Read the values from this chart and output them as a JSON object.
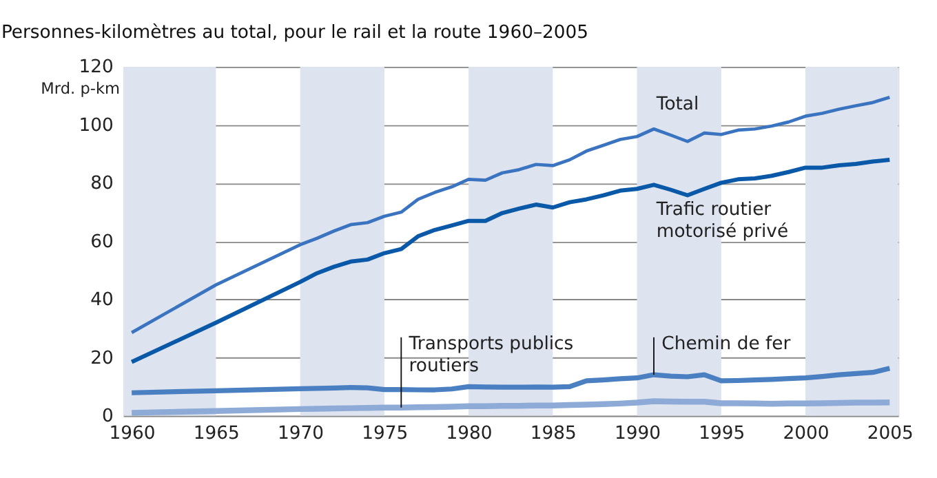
{
  "chart_data": {
    "type": "line",
    "title": "Personnes-kilomètres au total, pour le rail et la route 1960–2005",
    "ylabel": "Mrd. p-km",
    "x": [
      1960,
      1965,
      1970,
      1971,
      1972,
      1973,
      1974,
      1975,
      1976,
      1977,
      1978,
      1979,
      1980,
      1981,
      1982,
      1983,
      1984,
      1985,
      1986,
      1987,
      1988,
      1989,
      1990,
      1991,
      1992,
      1993,
      1994,
      1995,
      1996,
      1997,
      1998,
      1999,
      2000,
      2001,
      2002,
      2003,
      2004,
      2005
    ],
    "series": [
      {
        "name": "Total",
        "color": "#3a74c0",
        "values": [
          28.6,
          45,
          58.8,
          61,
          63.5,
          65.7,
          66.4,
          68.6,
          70,
          74.4,
          76.8,
          78.7,
          81.3,
          81,
          83.5,
          84.6,
          86.4,
          86,
          88,
          91,
          93,
          95,
          96,
          98.6,
          96.5,
          94.3,
          97.2,
          96.7,
          98.2,
          98.6,
          99.6,
          101,
          103,
          104,
          105.4,
          106.6,
          107.7,
          109.5
        ]
      },
      {
        "name": "Trafic routier\nmotorisé privé",
        "color": "#0a59a8",
        "values": [
          18.5,
          32,
          46,
          49,
          51.2,
          53,
          53.7,
          55.9,
          57.3,
          61.7,
          63.9,
          65.4,
          67,
          67,
          69.7,
          71.2,
          72.6,
          71.6,
          73.4,
          74.4,
          75.8,
          77.4,
          78,
          79.4,
          77.7,
          75.8,
          78,
          80.1,
          81.3,
          81.6,
          82.5,
          83.8,
          85.3,
          85.3,
          86.1,
          86.6,
          87.4,
          88
        ]
      },
      {
        "name": "Chemin de fer",
        "color": "#4a7fc1",
        "values": [
          7.9,
          8.6,
          9.3,
          9.4,
          9.5,
          9.7,
          9.6,
          9,
          9,
          8.9,
          8.9,
          9.2,
          10,
          9.9,
          9.8,
          9.8,
          9.9,
          9.8,
          10,
          12,
          12.3,
          12.7,
          13,
          14.1,
          13.6,
          13.4,
          14.1,
          12,
          12.1,
          12.3,
          12.5,
          12.8,
          13,
          13.5,
          14.1,
          14.5,
          14.9,
          16.3
        ]
      },
      {
        "name": "Transports publics\nroutiers",
        "color": "#8eabd8",
        "values": [
          1,
          1.6,
          2.3,
          2.4,
          2.5,
          2.6,
          2.7,
          2.8,
          2.8,
          2.9,
          3,
          3.1,
          3.3,
          3.3,
          3.4,
          3.4,
          3.5,
          3.5,
          3.7,
          3.8,
          4,
          4.2,
          4.5,
          5,
          4.9,
          4.8,
          4.8,
          4.3,
          4.3,
          4.2,
          4.1,
          4.2,
          4.2,
          4.3,
          4.4,
          4.5,
          4.5,
          4.6
        ]
      }
    ],
    "xlim": [
      1959.5,
      2005.5
    ],
    "xticks": [
      1960,
      1965,
      1970,
      1975,
      1980,
      1985,
      1990,
      1995,
      2000,
      2005
    ],
    "ylim": [
      0,
      120
    ],
    "yticks": [
      0,
      20,
      40,
      60,
      80,
      100,
      120
    ],
    "grid": "y",
    "legend": false,
    "line_style": "solid",
    "marker": "none",
    "bands": [
      {
        "axis": "x",
        "from": 1959.5,
        "to": 1965,
        "color": "#dde3ef"
      },
      {
        "axis": "x",
        "from": 1970,
        "to": 1975,
        "color": "#dde3ef"
      },
      {
        "axis": "x",
        "from": 1980,
        "to": 1985,
        "color": "#dde3ef"
      },
      {
        "axis": "x",
        "from": 1990,
        "to": 1995,
        "color": "#dde3ef"
      },
      {
        "axis": "x",
        "from": 2000,
        "to": 2005.5,
        "color": "#dde3ef"
      }
    ]
  }
}
